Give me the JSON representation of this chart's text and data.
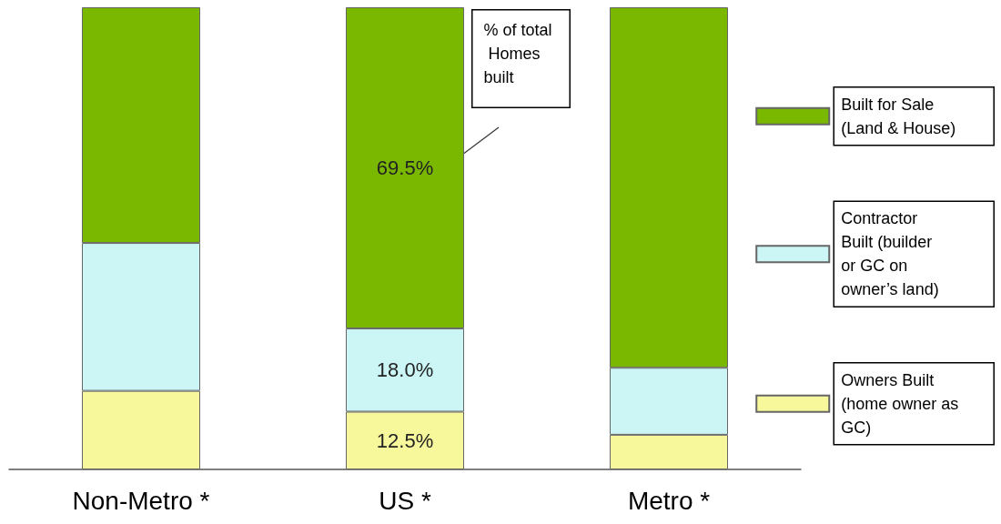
{
  "chart_data": {
    "type": "bar",
    "stacked": true,
    "categories": [
      "Non-Metro *",
      "US *",
      "Metro *"
    ],
    "ylim": [
      0,
      100
    ],
    "tick_labels": "x",
    "legend": "right",
    "series": [
      {
        "name": "Owners Built (home owner as GC)",
        "color": "#f7f79c",
        "values": [
          17,
          12.5,
          7.5
        ],
        "value_labels": [
          null,
          "12.5%",
          null
        ]
      },
      {
        "name": "Contractor Built (builder or GC on owner’s land)",
        "color": "#ccf6f6",
        "values": [
          32,
          18.0,
          14.5
        ],
        "value_labels": [
          null,
          "18.0%",
          null
        ]
      },
      {
        "name": "Built for Sale (Land & House)",
        "color": "#7ab800",
        "values": [
          51,
          69.5,
          78
        ],
        "value_labels": [
          null,
          "69.5%",
          null
        ]
      }
    ],
    "annotations": [
      "% of total Homes built"
    ]
  }
}
